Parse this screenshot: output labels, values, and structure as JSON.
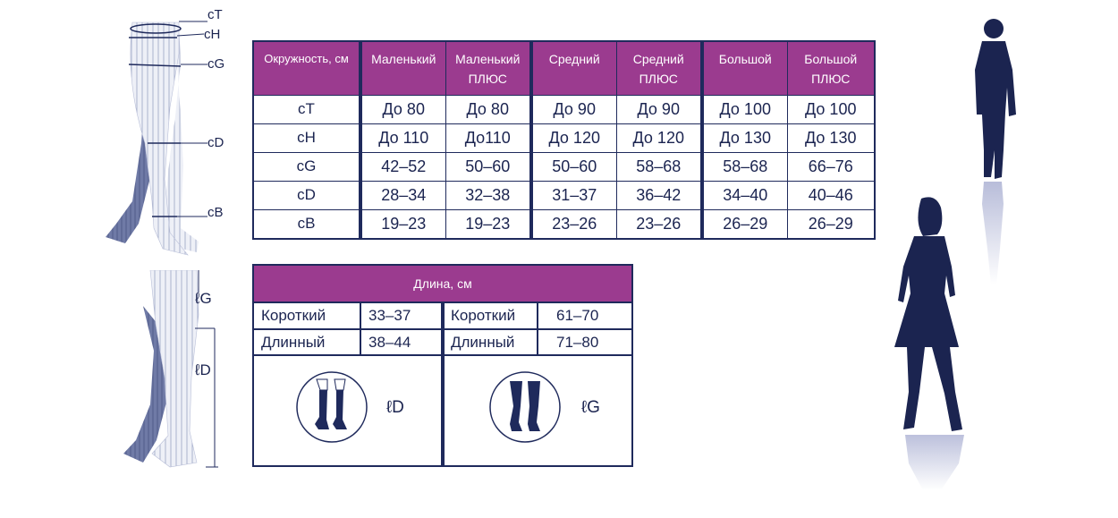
{
  "leg_labels": [
    "cT",
    "cH",
    "cG",
    "cD",
    "cB"
  ],
  "length_labels": {
    "lG": "ℓG",
    "lD": "ℓD"
  },
  "sizes": {
    "header": [
      "Окружность, см",
      "Маленький",
      "Маленький\nПЛЮС",
      "Средний",
      "Средний\nПЛЮС",
      "Большой",
      "Большой\nПЛЮС"
    ],
    "rows": [
      [
        "cT",
        "До 80",
        "До 80",
        "До 90",
        "До 90",
        "До 100",
        "До 100"
      ],
      [
        "cH",
        "До 110",
        "До110",
        "До 120",
        "До 120",
        "До 130",
        "До 130"
      ],
      [
        "cG",
        "42–52",
        "50–60",
        "50–60",
        "58–68",
        "58–68",
        "66–76"
      ],
      [
        "cD",
        "28–34",
        "32–38",
        "31–37",
        "36–42",
        "34–40",
        "40–46"
      ],
      [
        "cB",
        "19–23",
        "19–23",
        "23–26",
        "23–26",
        "26–29",
        "26–29"
      ]
    ]
  },
  "length": {
    "title": "Длина, см",
    "left": [
      {
        "label": "Короткий",
        "value": "33–37"
      },
      {
        "label": "Длинный",
        "value": "38–44"
      }
    ],
    "right": [
      {
        "label": "Короткий",
        "value": "61–70"
      },
      {
        "label": "Длинный",
        "value": "71–80"
      }
    ],
    "left_icon_label": "ℓD",
    "right_icon_label": "ℓG"
  },
  "colors": {
    "navy": "#1f2a5c",
    "purple": "#9b3b8f"
  }
}
